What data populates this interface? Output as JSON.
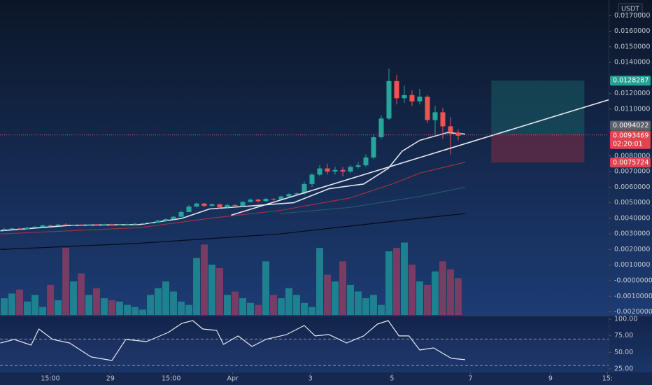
{
  "chart_data": {
    "type": "candlestick",
    "currency": "USDT",
    "up_color": "#26a69a",
    "down_color": "#ef5350",
    "xlim": [
      -0.55,
      78.55
    ],
    "xticks": [
      {
        "value": 6,
        "label": "15:00"
      },
      {
        "value": 13.8,
        "label": "29"
      },
      {
        "value": 21.7,
        "label": "15:00"
      },
      {
        "value": 29.7,
        "label": "Apr"
      },
      {
        "value": 39.8,
        "label": "3"
      },
      {
        "value": 50.4,
        "label": "5"
      },
      {
        "value": 60.6,
        "label": "7"
      },
      {
        "value": 71,
        "label": "9"
      },
      {
        "value": 78.4,
        "label": "15:"
      }
    ],
    "ylim": [
      -0.0022,
      0.018
    ],
    "yticks": [
      {
        "value": 0.017,
        "label": "0.0170000"
      },
      {
        "value": 0.016,
        "label": "0.0160000"
      },
      {
        "value": 0.015,
        "label": "0.0150000"
      },
      {
        "value": 0.014,
        "label": "0.0140000"
      },
      {
        "value": 0.012,
        "label": "0.0120000"
      },
      {
        "value": 0.011,
        "label": "0.0110000"
      },
      {
        "value": 0.008,
        "label": "0.0080000"
      },
      {
        "value": 0.007,
        "label": "0.0070000"
      },
      {
        "value": 0.006,
        "label": "0.0060000"
      },
      {
        "value": 0.005,
        "label": "0.0050000"
      },
      {
        "value": 0.004,
        "label": "0.0040000"
      },
      {
        "value": 0.003,
        "label": "0.0030000"
      },
      {
        "value": 0.002,
        "label": "0.0020000"
      },
      {
        "value": 0.001,
        "label": "0.0010000"
      },
      {
        "value": 0,
        "label": "-0.0000000"
      },
      {
        "value": -0.001,
        "label": "-0.0010000"
      },
      {
        "value": -0.002,
        "label": "-0.0020000"
      }
    ],
    "open": [
      0.00325,
      0.0033,
      0.00335,
      0.00332,
      0.0034,
      0.00345,
      0.00355,
      0.00352,
      0.0036,
      0.00356,
      0.00358,
      0.00355,
      0.0036,
      0.00357,
      0.00362,
      0.00358,
      0.0036,
      0.00363,
      0.00365,
      0.00368,
      0.00372,
      0.00385,
      0.00395,
      0.0041,
      0.0044,
      0.00475,
      0.00495,
      0.0048,
      0.0049,
      0.0047,
      0.00485,
      0.0048,
      0.00505,
      0.0052,
      0.0051,
      0.00525,
      0.0052,
      0.0054,
      0.00555,
      0.0056,
      0.0062,
      0.0068,
      0.0072,
      0.007,
      0.0071,
      0.007,
      0.0073,
      0.0074,
      0.0079,
      0.0092,
      0.0104,
      0.0128,
      0.0117,
      0.0119,
      0.0115,
      0.0118,
      0.0103,
      0.0108,
      0.0099,
      0.0095
    ],
    "high": [
      0.00338,
      0.0034,
      0.00342,
      0.00345,
      0.0035,
      0.0036,
      0.0036,
      0.00365,
      0.00368,
      0.00362,
      0.00362,
      0.00364,
      0.00363,
      0.00366,
      0.00365,
      0.00364,
      0.00366,
      0.0037,
      0.00372,
      0.00376,
      0.0039,
      0.004,
      0.00418,
      0.0045,
      0.00485,
      0.005,
      0.00498,
      0.00495,
      0.00492,
      0.00492,
      0.0049,
      0.0051,
      0.00528,
      0.00525,
      0.0053,
      0.0053,
      0.00545,
      0.0056,
      0.00565,
      0.00635,
      0.0069,
      0.0074,
      0.0075,
      0.0073,
      0.0073,
      0.0074,
      0.0076,
      0.0081,
      0.0094,
      0.0106,
      0.0136,
      0.0132,
      0.0125,
      0.0122,
      0.0123,
      0.0119,
      0.0112,
      0.0111,
      0.0105,
      0.0097
    ],
    "low": [
      0.0032,
      0.00325,
      0.00328,
      0.0033,
      0.00338,
      0.00342,
      0.00348,
      0.0035,
      0.00352,
      0.00352,
      0.0035,
      0.00352,
      0.00354,
      0.00355,
      0.00354,
      0.00355,
      0.00358,
      0.0036,
      0.00362,
      0.00366,
      0.0037,
      0.0038,
      0.0039,
      0.0041,
      0.0044,
      0.0047,
      0.00472,
      0.00475,
      0.00462,
      0.00465,
      0.00472,
      0.00475,
      0.005,
      0.00502,
      0.00505,
      0.00512,
      0.00515,
      0.0053,
      0.0055,
      0.0055,
      0.006,
      0.0067,
      0.0068,
      0.0068,
      0.0067,
      0.0069,
      0.0072,
      0.0073,
      0.0078,
      0.0091,
      0.0103,
      0.0113,
      0.0114,
      0.0112,
      0.0113,
      0.0101,
      0.0093,
      0.0091,
      0.0081,
      0.009
    ],
    "close": [
      0.0033,
      0.00335,
      0.00332,
      0.0034,
      0.00345,
      0.00355,
      0.00352,
      0.0036,
      0.00356,
      0.00358,
      0.00355,
      0.0036,
      0.00357,
      0.00362,
      0.00358,
      0.0036,
      0.00363,
      0.00365,
      0.00368,
      0.00372,
      0.00385,
      0.00395,
      0.0041,
      0.0044,
      0.00475,
      0.00495,
      0.0048,
      0.0049,
      0.0047,
      0.00485,
      0.0048,
      0.00505,
      0.0052,
      0.0051,
      0.00525,
      0.0052,
      0.0054,
      0.00555,
      0.0056,
      0.0062,
      0.0068,
      0.0072,
      0.007,
      0.0071,
      0.007,
      0.0073,
      0.0074,
      0.0079,
      0.0092,
      0.0104,
      0.0128,
      0.0117,
      0.0119,
      0.0115,
      0.0118,
      0.0103,
      0.0108,
      0.0099,
      0.0095,
      0.0093
    ],
    "volume": [
      25,
      32,
      38,
      20,
      30,
      12,
      45,
      22,
      100,
      50,
      62,
      30,
      40,
      25,
      22,
      20,
      15,
      12,
      8,
      30,
      40,
      50,
      35,
      20,
      15,
      85,
      105,
      75,
      70,
      30,
      35,
      25,
      18,
      15,
      80,
      30,
      25,
      40,
      30,
      18,
      12,
      100,
      60,
      50,
      80,
      45,
      35,
      25,
      30,
      15,
      95,
      100,
      108,
      75,
      50,
      45,
      65,
      80,
      68,
      55
    ],
    "volume_lim": [
      0,
      120
    ],
    "moving_averages": [
      {
        "color": "#e0e3eb",
        "x": [
          -0.5,
          8.5,
          17.6,
          23.1,
          26.7,
          37.6,
          42.2,
          46.7,
          49.9,
          51.7,
          54,
          57.6,
          59.9
        ],
        "values": [
          0.0032,
          0.00355,
          0.0036,
          0.004,
          0.0046,
          0.005,
          0.0059,
          0.0062,
          0.0072,
          0.0083,
          0.009,
          0.0095,
          0.0094
        ]
      },
      {
        "color": "#9b3344",
        "x": [
          -0.5,
          17.6,
          26.7,
          35.8,
          44.9,
          50.4,
          54,
          59.9
        ],
        "values": [
          0.003,
          0.0034,
          0.004,
          0.0045,
          0.0053,
          0.0062,
          0.0069,
          0.0076
        ]
      },
      {
        "color": "#1e5b6e",
        "x": [
          35.8,
          44.9,
          54,
          59.9
        ],
        "values": [
          0.0043,
          0.0047,
          0.0054,
          0.006
        ]
      },
      {
        "color": "#070b14",
        "x": [
          -0.5,
          17.6,
          35.8,
          44.9,
          54,
          59.9
        ],
        "values": [
          0.002,
          0.0024,
          0.003,
          0.0035,
          0.004,
          0.0043
        ]
      }
    ],
    "trendline": {
      "color": "#e8eaf0",
      "x": [
        29.5,
        78.55
      ],
      "values": [
        0.0042,
        0.0116
      ]
    },
    "position": {
      "x": [
        63.3,
        75.4
      ],
      "target": 0.0128287,
      "entry": 0.0094022,
      "stop": 0.0075724
    },
    "last_price": 0.0093469,
    "countdown": "02:20:01",
    "rsi": {
      "color": "#e6e8ee",
      "x": [
        -0.5,
        1.3,
        3.5,
        4.5,
        6.3,
        8.5,
        11.3,
        14,
        15.8,
        18.5,
        21.3,
        23.1,
        24.5,
        25.8,
        27.6,
        28.5,
        30.4,
        32.2,
        34,
        36.7,
        39,
        40.4,
        42.2,
        44.5,
        46.7,
        48.5,
        49.9,
        51.3,
        52.6,
        54,
        55.8,
        58.1,
        59.9
      ],
      "values": [
        64.1,
        69.4,
        60.9,
        85.2,
        69.4,
        64.1,
        43,
        37.7,
        69.4,
        66.2,
        79.9,
        93.7,
        97.9,
        85.2,
        83.1,
        62,
        74.7,
        58.8,
        69.4,
        76.8,
        90.5,
        74.7,
        76.8,
        64.1,
        74.7,
        92.6,
        97.9,
        74.7,
        74.7,
        53.5,
        56.7,
        40.9,
        38.8
      ],
      "ylim": [
        19.7,
        104.2
      ],
      "yticks": [
        {
          "value": 100,
          "label": "100.00"
        },
        {
          "value": 75,
          "label": "75.00"
        },
        {
          "value": 50,
          "label": "50.00"
        },
        {
          "value": 25,
          "label": "25.00"
        }
      ],
      "bands": [
        30,
        70
      ]
    }
  }
}
